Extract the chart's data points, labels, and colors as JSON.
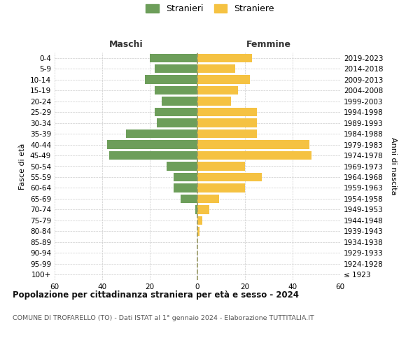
{
  "age_groups": [
    "100+",
    "95-99",
    "90-94",
    "85-89",
    "80-84",
    "75-79",
    "70-74",
    "65-69",
    "60-64",
    "55-59",
    "50-54",
    "45-49",
    "40-44",
    "35-39",
    "30-34",
    "25-29",
    "20-24",
    "15-19",
    "10-14",
    "5-9",
    "0-4"
  ],
  "birth_years": [
    "≤ 1923",
    "1924-1928",
    "1929-1933",
    "1934-1938",
    "1939-1943",
    "1944-1948",
    "1949-1953",
    "1954-1958",
    "1959-1963",
    "1964-1968",
    "1969-1973",
    "1974-1978",
    "1979-1983",
    "1984-1988",
    "1989-1993",
    "1994-1998",
    "1999-2003",
    "2004-2008",
    "2009-2013",
    "2014-2018",
    "2019-2023"
  ],
  "males": [
    0,
    0,
    0,
    0,
    0,
    0,
    1,
    7,
    10,
    10,
    13,
    37,
    38,
    30,
    17,
    18,
    15,
    18,
    22,
    18,
    20
  ],
  "females": [
    0,
    0,
    0,
    0,
    1,
    2,
    5,
    9,
    20,
    27,
    20,
    48,
    47,
    25,
    25,
    25,
    14,
    17,
    22,
    16,
    23
  ],
  "male_color": "#6d9e5a",
  "female_color": "#f5c242",
  "grid_color": "#cccccc",
  "center_line_color": "#999966",
  "title": "Popolazione per cittadinanza straniera per età e sesso - 2024",
  "subtitle": "COMUNE DI TROFARELLO (TO) - Dati ISTAT al 1° gennaio 2024 - Elaborazione TUTTITALIA.IT",
  "xlabel_left": "Maschi",
  "xlabel_right": "Femmine",
  "ylabel_left": "Fasce di età",
  "ylabel_right": "Anni di nascita",
  "legend_male": "Stranieri",
  "legend_female": "Straniere",
  "xlim": 60,
  "background_color": "#ffffff",
  "tick_fontsize": 7.5,
  "header_fontsize": 9,
  "title_fontsize": 8.5,
  "subtitle_fontsize": 6.8
}
